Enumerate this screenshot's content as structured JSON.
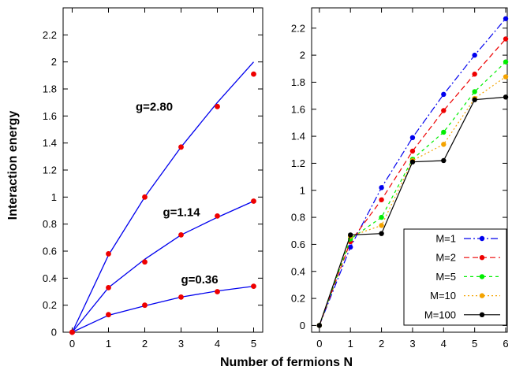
{
  "xlabel": "Number of fermions N",
  "ylabel": "Interaction energy",
  "chart_data": [
    {
      "type": "line",
      "ylim": [
        0,
        2.4
      ],
      "xlim": [
        -0.25,
        5.25
      ],
      "x_ticks": [
        0,
        1,
        2,
        3,
        4,
        5
      ],
      "y_ticks": [
        0,
        0.2,
        0.4,
        0.6,
        0.8,
        1,
        1.2,
        1.4,
        1.6,
        1.8,
        2,
        2.2
      ],
      "series": [
        {
          "label": "g=2.80",
          "label_at": [
            1.75,
            1.64
          ],
          "line_color": "#0000ee",
          "point_color": "#ee0000",
          "curve_x": [
            0,
            1,
            2,
            3,
            4,
            5
          ],
          "curve_y": [
            0,
            0.57,
            1.0,
            1.37,
            1.7,
            2.0
          ],
          "x": [
            0,
            1,
            2,
            3,
            4,
            5
          ],
          "y": [
            0,
            0.58,
            1.0,
            1.37,
            1.67,
            1.91
          ]
        },
        {
          "label": "g=1.14",
          "label_at": [
            2.5,
            0.86
          ],
          "line_color": "#0000ee",
          "point_color": "#ee0000",
          "curve_x": [
            0,
            1,
            2,
            3,
            4,
            5
          ],
          "curve_y": [
            0,
            0.33,
            0.54,
            0.72,
            0.85,
            0.97
          ],
          "x": [
            0,
            1,
            2,
            3,
            4,
            5
          ],
          "y": [
            0,
            0.33,
            0.52,
            0.72,
            0.86,
            0.97
          ]
        },
        {
          "label": "g=0.36",
          "label_at": [
            3.0,
            0.36
          ],
          "line_color": "#0000ee",
          "point_color": "#ee0000",
          "curve_x": [
            0,
            1,
            2,
            3,
            4,
            5
          ],
          "curve_y": [
            0,
            0.125,
            0.195,
            0.26,
            0.305,
            0.34
          ],
          "x": [
            0,
            1,
            2,
            3,
            4,
            5
          ],
          "y": [
            0,
            0.13,
            0.2,
            0.26,
            0.3,
            0.34
          ]
        }
      ]
    },
    {
      "type": "line",
      "ylim": [
        -0.05,
        2.35
      ],
      "xlim": [
        -0.25,
        6.05
      ],
      "x_ticks": [
        0,
        1,
        2,
        3,
        4,
        5,
        6
      ],
      "y_ticks": [
        0,
        0.2,
        0.4,
        0.6,
        0.8,
        1,
        1.2,
        1.4,
        1.6,
        1.8,
        2,
        2.2
      ],
      "legend": "bottom-right",
      "series": [
        {
          "name": "M=1",
          "color": "#0000ee",
          "dash": "9,3,2,3",
          "x": [
            0,
            1,
            2,
            3,
            4,
            5,
            6
          ],
          "y": [
            0,
            0.58,
            1.02,
            1.39,
            1.71,
            2.0,
            2.27
          ]
        },
        {
          "name": "M=2",
          "color": "#ee0000",
          "dash": "7,4",
          "x": [
            0,
            1,
            2,
            3,
            4,
            5,
            6
          ],
          "y": [
            0,
            0.62,
            0.93,
            1.29,
            1.59,
            1.86,
            2.12
          ]
        },
        {
          "name": "M=5",
          "color": "#00ee00",
          "dash": "4,4",
          "x": [
            0,
            1,
            2,
            3,
            4,
            5,
            6
          ],
          "y": [
            0,
            0.64,
            0.8,
            1.23,
            1.43,
            1.73,
            1.95
          ]
        },
        {
          "name": "M=10",
          "color": "#f4a300",
          "dash": "2,3",
          "x": [
            0,
            1,
            2,
            3,
            4,
            5,
            6
          ],
          "y": [
            0,
            0.66,
            0.74,
            1.22,
            1.34,
            1.68,
            1.84
          ]
        },
        {
          "name": "M=100",
          "color": "#000000",
          "dash": "",
          "x": [
            0,
            1,
            2,
            3,
            4,
            5,
            6
          ],
          "y": [
            0,
            0.67,
            0.68,
            1.21,
            1.22,
            1.67,
            1.69
          ]
        }
      ]
    }
  ]
}
